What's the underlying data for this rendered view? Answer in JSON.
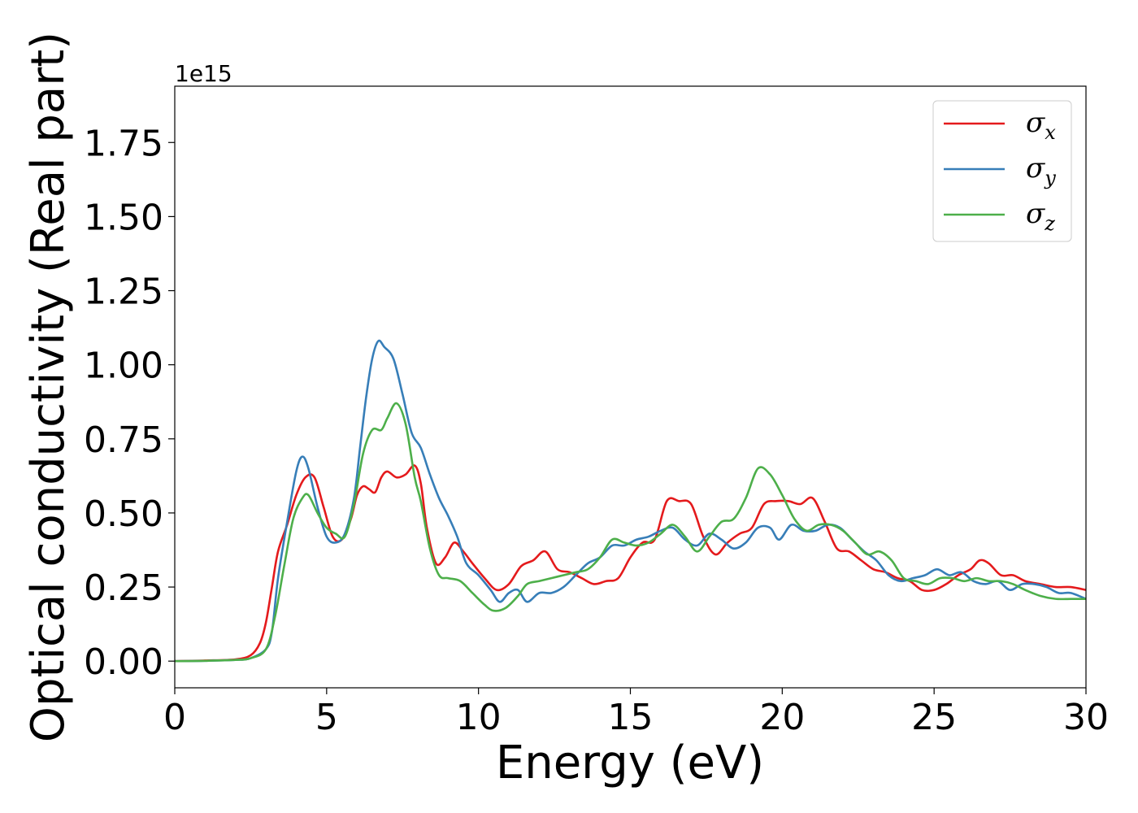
{
  "chart_data": {
    "type": "line",
    "xlabel": "Energy (eV)",
    "ylabel": "Optical conductivity (Real part)",
    "offset_text": "1e15",
    "xlim": [
      0,
      30
    ],
    "ylim": [
      -0.09,
      1.94
    ],
    "x_ticks": [
      0,
      5,
      10,
      15,
      20,
      25,
      30
    ],
    "x_tick_labels": [
      "0",
      "5",
      "10",
      "15",
      "20",
      "25",
      "30"
    ],
    "y_ticks": [
      0,
      0.25,
      0.5,
      0.75,
      1.0,
      1.25,
      1.5,
      1.75
    ],
    "y_tick_labels": [
      "0.00",
      "0.25",
      "0.50",
      "0.75",
      "1.00",
      "1.25",
      "1.50",
      "1.75"
    ],
    "grid": false,
    "legend_position": "top-right",
    "series": [
      {
        "name": "σ",
        "subscript": "x",
        "color": "#e41a1c",
        "points": [
          [
            0,
            0
          ],
          [
            1,
            0.002
          ],
          [
            2,
            0.006
          ],
          [
            2.5,
            0.02
          ],
          [
            2.8,
            0.06
          ],
          [
            3.0,
            0.13
          ],
          [
            3.2,
            0.25
          ],
          [
            3.4,
            0.37
          ],
          [
            3.7,
            0.46
          ],
          [
            4.0,
            0.56
          ],
          [
            4.3,
            0.62
          ],
          [
            4.6,
            0.62
          ],
          [
            4.9,
            0.52
          ],
          [
            5.2,
            0.42
          ],
          [
            5.5,
            0.41
          ],
          [
            5.8,
            0.48
          ],
          [
            6.0,
            0.56
          ],
          [
            6.2,
            0.59
          ],
          [
            6.4,
            0.58
          ],
          [
            6.6,
            0.57
          ],
          [
            6.8,
            0.62
          ],
          [
            7.0,
            0.64
          ],
          [
            7.3,
            0.62
          ],
          [
            7.6,
            0.63
          ],
          [
            7.9,
            0.66
          ],
          [
            8.1,
            0.6
          ],
          [
            8.3,
            0.45
          ],
          [
            8.6,
            0.33
          ],
          [
            8.9,
            0.35
          ],
          [
            9.2,
            0.4
          ],
          [
            9.5,
            0.37
          ],
          [
            9.8,
            0.33
          ],
          [
            10.2,
            0.28
          ],
          [
            10.6,
            0.24
          ],
          [
            11.0,
            0.26
          ],
          [
            11.4,
            0.32
          ],
          [
            11.8,
            0.34
          ],
          [
            12.2,
            0.37
          ],
          [
            12.6,
            0.31
          ],
          [
            13.0,
            0.3
          ],
          [
            13.4,
            0.28
          ],
          [
            13.8,
            0.26
          ],
          [
            14.2,
            0.27
          ],
          [
            14.6,
            0.28
          ],
          [
            15.0,
            0.35
          ],
          [
            15.4,
            0.4
          ],
          [
            15.8,
            0.41
          ],
          [
            16.2,
            0.54
          ],
          [
            16.6,
            0.54
          ],
          [
            17.0,
            0.53
          ],
          [
            17.4,
            0.42
          ],
          [
            17.8,
            0.36
          ],
          [
            18.2,
            0.4
          ],
          [
            18.6,
            0.43
          ],
          [
            19.0,
            0.45
          ],
          [
            19.4,
            0.53
          ],
          [
            19.8,
            0.54
          ],
          [
            20.2,
            0.54
          ],
          [
            20.6,
            0.53
          ],
          [
            21.0,
            0.55
          ],
          [
            21.4,
            0.47
          ],
          [
            21.8,
            0.38
          ],
          [
            22.2,
            0.37
          ],
          [
            22.6,
            0.34
          ],
          [
            23.0,
            0.31
          ],
          [
            23.4,
            0.3
          ],
          [
            23.8,
            0.28
          ],
          [
            24.2,
            0.27
          ],
          [
            24.6,
            0.24
          ],
          [
            25.0,
            0.24
          ],
          [
            25.4,
            0.26
          ],
          [
            25.8,
            0.29
          ],
          [
            26.2,
            0.31
          ],
          [
            26.5,
            0.34
          ],
          [
            26.8,
            0.33
          ],
          [
            27.2,
            0.29
          ],
          [
            27.6,
            0.29
          ],
          [
            28.0,
            0.27
          ],
          [
            28.5,
            0.26
          ],
          [
            29.0,
            0.25
          ],
          [
            29.5,
            0.25
          ],
          [
            30,
            0.24
          ]
        ]
      },
      {
        "name": "σ",
        "subscript": "y",
        "color": "#377eb8",
        "points": [
          [
            0,
            0
          ],
          [
            1,
            0.001
          ],
          [
            2,
            0.004
          ],
          [
            2.5,
            0.01
          ],
          [
            3.0,
            0.04
          ],
          [
            3.2,
            0.1
          ],
          [
            3.4,
            0.28
          ],
          [
            3.7,
            0.47
          ],
          [
            4.0,
            0.64
          ],
          [
            4.2,
            0.69
          ],
          [
            4.4,
            0.65
          ],
          [
            4.7,
            0.52
          ],
          [
            5.0,
            0.42
          ],
          [
            5.3,
            0.4
          ],
          [
            5.6,
            0.43
          ],
          [
            5.9,
            0.55
          ],
          [
            6.1,
            0.72
          ],
          [
            6.3,
            0.89
          ],
          [
            6.5,
            1.02
          ],
          [
            6.7,
            1.08
          ],
          [
            6.9,
            1.06
          ],
          [
            7.2,
            1.02
          ],
          [
            7.5,
            0.9
          ],
          [
            7.8,
            0.77
          ],
          [
            8.1,
            0.72
          ],
          [
            8.4,
            0.63
          ],
          [
            8.7,
            0.55
          ],
          [
            9.0,
            0.49
          ],
          [
            9.3,
            0.42
          ],
          [
            9.6,
            0.33
          ],
          [
            10.0,
            0.29
          ],
          [
            10.4,
            0.24
          ],
          [
            10.7,
            0.2
          ],
          [
            11.0,
            0.23
          ],
          [
            11.3,
            0.24
          ],
          [
            11.6,
            0.2
          ],
          [
            12.0,
            0.23
          ],
          [
            12.4,
            0.23
          ],
          [
            12.8,
            0.25
          ],
          [
            13.2,
            0.29
          ],
          [
            13.6,
            0.33
          ],
          [
            14.0,
            0.35
          ],
          [
            14.4,
            0.39
          ],
          [
            14.8,
            0.39
          ],
          [
            15.2,
            0.41
          ],
          [
            15.6,
            0.42
          ],
          [
            16.0,
            0.44
          ],
          [
            16.4,
            0.45
          ],
          [
            16.8,
            0.41
          ],
          [
            17.2,
            0.39
          ],
          [
            17.6,
            0.43
          ],
          [
            18.0,
            0.41
          ],
          [
            18.4,
            0.38
          ],
          [
            18.8,
            0.4
          ],
          [
            19.2,
            0.45
          ],
          [
            19.6,
            0.45
          ],
          [
            19.9,
            0.41
          ],
          [
            20.3,
            0.46
          ],
          [
            20.7,
            0.44
          ],
          [
            21.1,
            0.44
          ],
          [
            21.5,
            0.46
          ],
          [
            21.9,
            0.45
          ],
          [
            22.3,
            0.41
          ],
          [
            22.7,
            0.37
          ],
          [
            23.1,
            0.34
          ],
          [
            23.5,
            0.29
          ],
          [
            23.9,
            0.27
          ],
          [
            24.3,
            0.28
          ],
          [
            24.7,
            0.29
          ],
          [
            25.1,
            0.31
          ],
          [
            25.5,
            0.29
          ],
          [
            25.9,
            0.3
          ],
          [
            26.3,
            0.27
          ],
          [
            26.7,
            0.26
          ],
          [
            27.1,
            0.27
          ],
          [
            27.5,
            0.24
          ],
          [
            27.9,
            0.26
          ],
          [
            28.3,
            0.26
          ],
          [
            28.7,
            0.25
          ],
          [
            29.1,
            0.23
          ],
          [
            29.5,
            0.23
          ],
          [
            30,
            0.21
          ]
        ]
      },
      {
        "name": "σ",
        "subscript": "z",
        "color": "#4daf4a",
        "points": [
          [
            0,
            0
          ],
          [
            1,
            0.001
          ],
          [
            2,
            0.004
          ],
          [
            2.5,
            0.01
          ],
          [
            3.0,
            0.04
          ],
          [
            3.3,
            0.15
          ],
          [
            3.6,
            0.32
          ],
          [
            3.9,
            0.48
          ],
          [
            4.2,
            0.55
          ],
          [
            4.4,
            0.56
          ],
          [
            4.7,
            0.5
          ],
          [
            5.0,
            0.45
          ],
          [
            5.3,
            0.43
          ],
          [
            5.6,
            0.42
          ],
          [
            5.9,
            0.53
          ],
          [
            6.2,
            0.7
          ],
          [
            6.5,
            0.78
          ],
          [
            6.8,
            0.78
          ],
          [
            7.0,
            0.82
          ],
          [
            7.3,
            0.87
          ],
          [
            7.6,
            0.8
          ],
          [
            7.9,
            0.62
          ],
          [
            8.1,
            0.54
          ],
          [
            8.4,
            0.38
          ],
          [
            8.7,
            0.29
          ],
          [
            9.0,
            0.28
          ],
          [
            9.4,
            0.27
          ],
          [
            9.8,
            0.23
          ],
          [
            10.2,
            0.19
          ],
          [
            10.5,
            0.17
          ],
          [
            10.9,
            0.18
          ],
          [
            11.3,
            0.22
          ],
          [
            11.6,
            0.26
          ],
          [
            12.0,
            0.27
          ],
          [
            12.4,
            0.28
          ],
          [
            12.8,
            0.29
          ],
          [
            13.2,
            0.3
          ],
          [
            13.6,
            0.31
          ],
          [
            14.0,
            0.35
          ],
          [
            14.4,
            0.41
          ],
          [
            14.8,
            0.4
          ],
          [
            15.2,
            0.39
          ],
          [
            15.6,
            0.4
          ],
          [
            16.0,
            0.43
          ],
          [
            16.4,
            0.46
          ],
          [
            16.8,
            0.42
          ],
          [
            17.2,
            0.37
          ],
          [
            17.6,
            0.42
          ],
          [
            18.0,
            0.47
          ],
          [
            18.4,
            0.48
          ],
          [
            18.8,
            0.55
          ],
          [
            19.2,
            0.65
          ],
          [
            19.6,
            0.63
          ],
          [
            20.0,
            0.56
          ],
          [
            20.4,
            0.48
          ],
          [
            20.8,
            0.44
          ],
          [
            21.2,
            0.46
          ],
          [
            21.6,
            0.46
          ],
          [
            22.0,
            0.44
          ],
          [
            22.4,
            0.4
          ],
          [
            22.8,
            0.36
          ],
          [
            23.2,
            0.37
          ],
          [
            23.6,
            0.34
          ],
          [
            24.0,
            0.28
          ],
          [
            24.4,
            0.27
          ],
          [
            24.8,
            0.26
          ],
          [
            25.2,
            0.28
          ],
          [
            25.6,
            0.28
          ],
          [
            26.0,
            0.27
          ],
          [
            26.4,
            0.28
          ],
          [
            26.8,
            0.27
          ],
          [
            27.2,
            0.27
          ],
          [
            27.6,
            0.26
          ],
          [
            28.0,
            0.24
          ],
          [
            28.5,
            0.22
          ],
          [
            29.0,
            0.21
          ],
          [
            29.5,
            0.21
          ],
          [
            30,
            0.21
          ]
        ]
      }
    ]
  }
}
